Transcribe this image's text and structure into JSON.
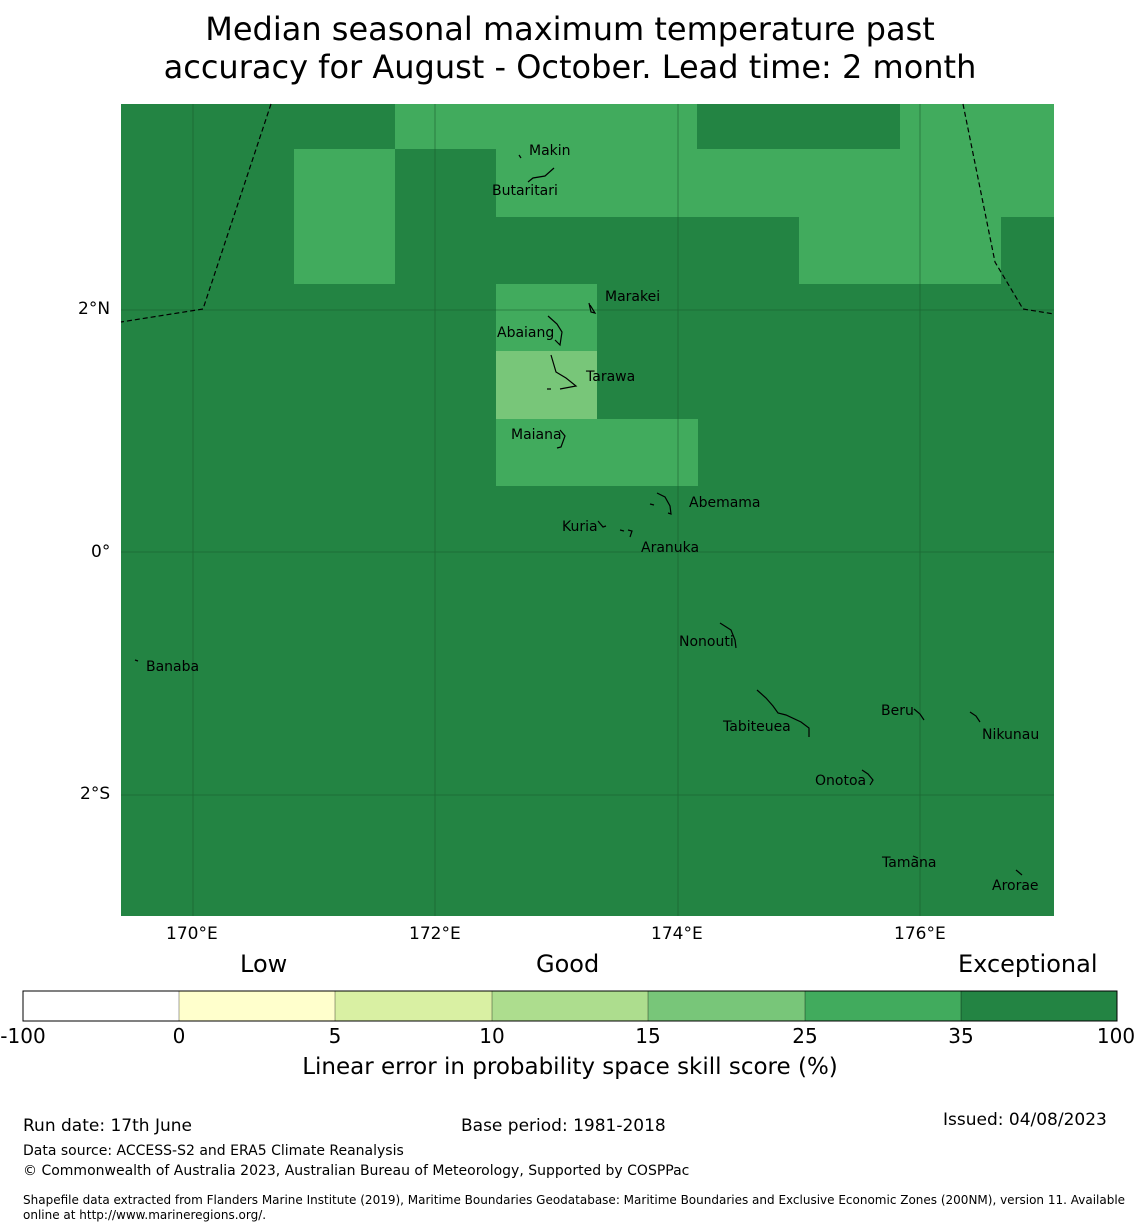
{
  "title_line1": "Median seasonal maximum temperature past",
  "title_line2": "accuracy for August - October. Lead time: 2 month",
  "map": {
    "x_ticks": [
      "170°E",
      "172°E",
      "174°E",
      "176°E"
    ],
    "y_ticks": [
      "2°N",
      "0°",
      "2°S"
    ],
    "places": [
      {
        "name": "Makin"
      },
      {
        "name": "Butaritari"
      },
      {
        "name": "Marakei"
      },
      {
        "name": "Abaiang"
      },
      {
        "name": "Tarawa"
      },
      {
        "name": "Maiana"
      },
      {
        "name": "Abemama"
      },
      {
        "name": "Kuria"
      },
      {
        "name": "Aranuka"
      },
      {
        "name": "Nonouti"
      },
      {
        "name": "Banaba"
      },
      {
        "name": "Beru"
      },
      {
        "name": "Tabiteuea"
      },
      {
        "name": "Nikunau"
      },
      {
        "name": "Onotoa"
      },
      {
        "name": "Tamana"
      },
      {
        "name": "Arorae"
      }
    ]
  },
  "colorbar": {
    "headers": [
      "Low",
      "Good",
      "Exceptional"
    ],
    "ticks": [
      "-100",
      "0",
      "5",
      "10",
      "15",
      "25",
      "35",
      "100"
    ],
    "colors": [
      "#ffffff",
      "#ffffcc",
      "#d9f0a3",
      "#addd8e",
      "#78c679",
      "#41ab5d",
      "#238443"
    ],
    "label": "Linear error in probability space skill score (%)"
  },
  "footer": {
    "run_date": "Run date: 17th June",
    "base_period": "Base period: 1981-2018",
    "issued": "Issued: 04/08/2023",
    "data_source": "Data source: ACCESS-S2 and ERA5 Climate Reanalysis",
    "copyright": "© Commonwealth of Australia 2023, Australian Bureau of Meteorology, Supported by COSPPac",
    "shapefile_line1": "Shapefile data extracted from Flanders Marine Institute (2019), Maritime Boundaries Geodatabase: Maritime Boundaries and Exclusive Economic Zones (200NM), version 11. Available",
    "shapefile_line2": "online at http://www.marineregions.org/."
  }
}
